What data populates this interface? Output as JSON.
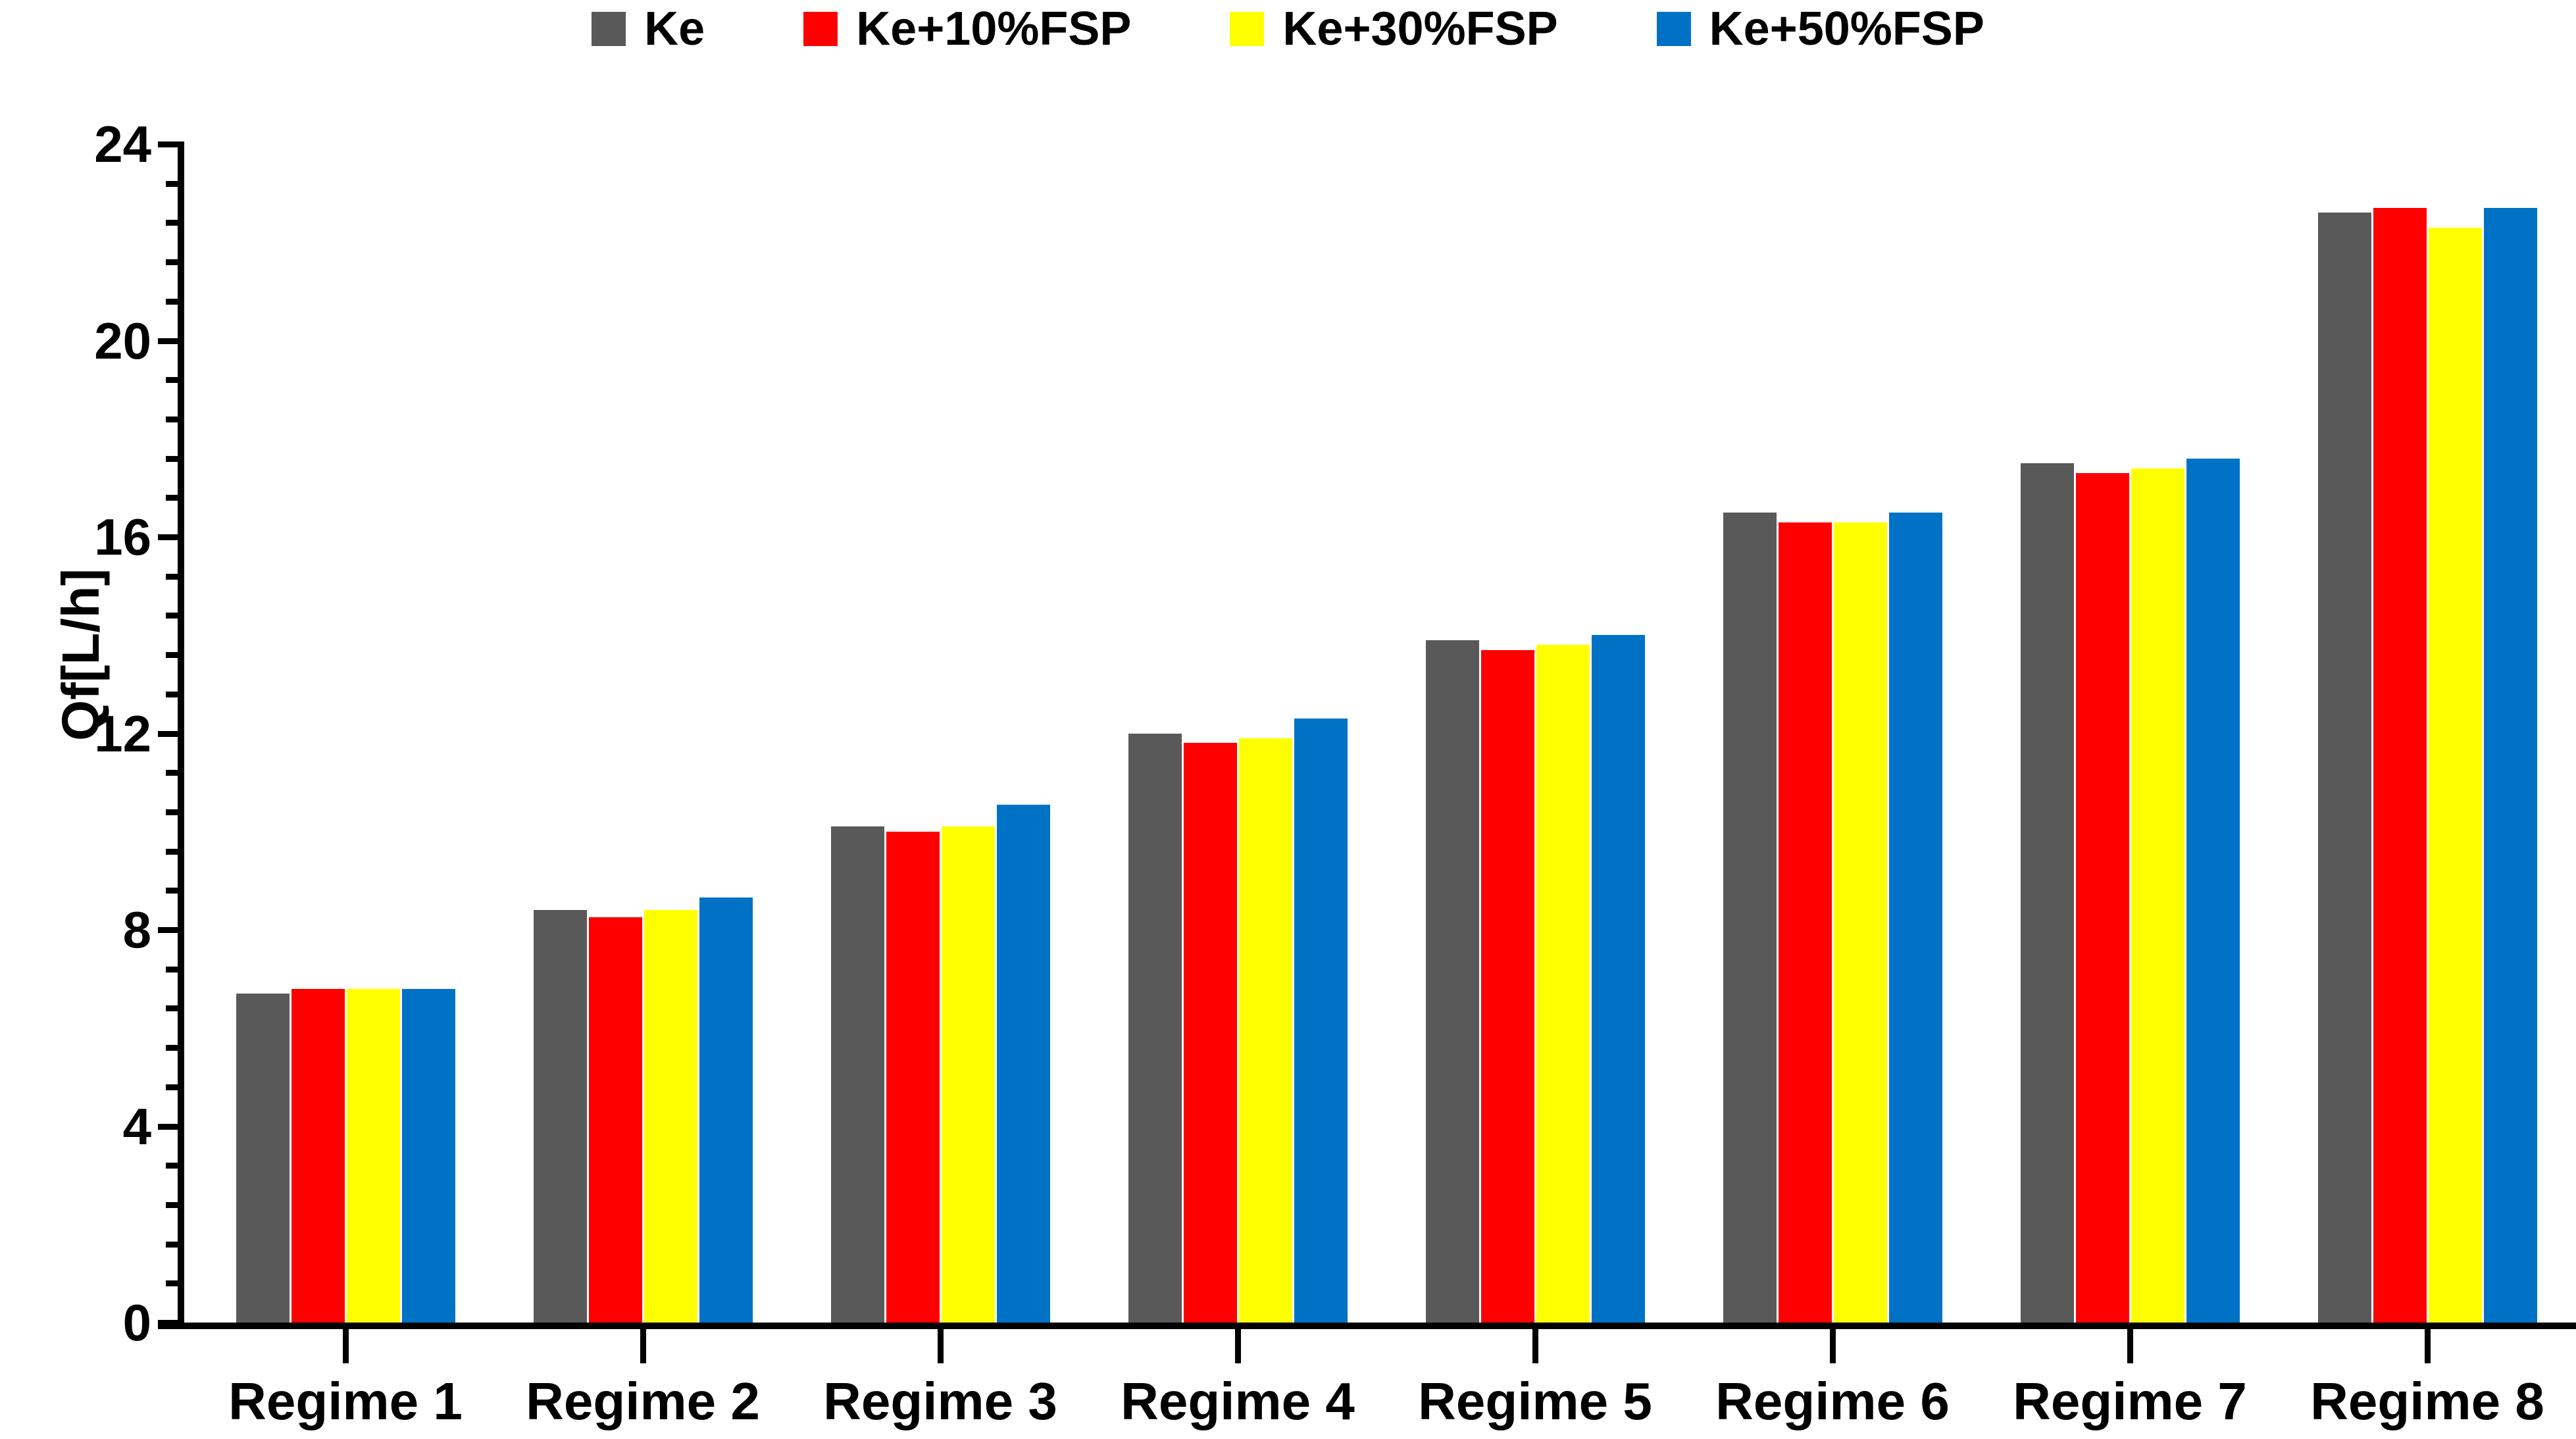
{
  "chart_data": {
    "type": "bar",
    "title": "",
    "xlabel": "",
    "ylabel": "Qf[L/h]",
    "ylim": [
      0,
      24
    ],
    "y_major_step": 4,
    "y_minor_step": 0.8,
    "y_tick_labels": [
      "0",
      "4",
      "8",
      "12",
      "16",
      "20",
      "24"
    ],
    "grid": false,
    "legend_position": "top",
    "axis_color": "#000000",
    "background_color": "#FFFFFF",
    "categories": [
      "Regime 1",
      "Regime 2",
      "Regime 3",
      "Regime 4",
      "Regime 5",
      "Regime 6",
      "Regime 7",
      "Regime 8"
    ],
    "series": [
      {
        "name": "Ke",
        "color": "#595959",
        "values": [
          6.7,
          8.4,
          10.1,
          12.0,
          13.9,
          16.5,
          17.5,
          22.6
        ]
      },
      {
        "name": "Ke+10%FSP",
        "color": "#FF0000",
        "values": [
          6.8,
          8.25,
          10.0,
          11.8,
          13.7,
          16.3,
          17.3,
          22.7
        ]
      },
      {
        "name": "Ke+30%FSP",
        "color": "#FFFF00",
        "values": [
          6.8,
          8.4,
          10.1,
          11.9,
          13.8,
          16.3,
          17.4,
          22.3
        ]
      },
      {
        "name": "Ke+50%FSP",
        "color": "#0072C6",
        "values": [
          6.8,
          8.65,
          10.55,
          12.3,
          14.0,
          16.5,
          17.6,
          22.7
        ]
      }
    ]
  }
}
